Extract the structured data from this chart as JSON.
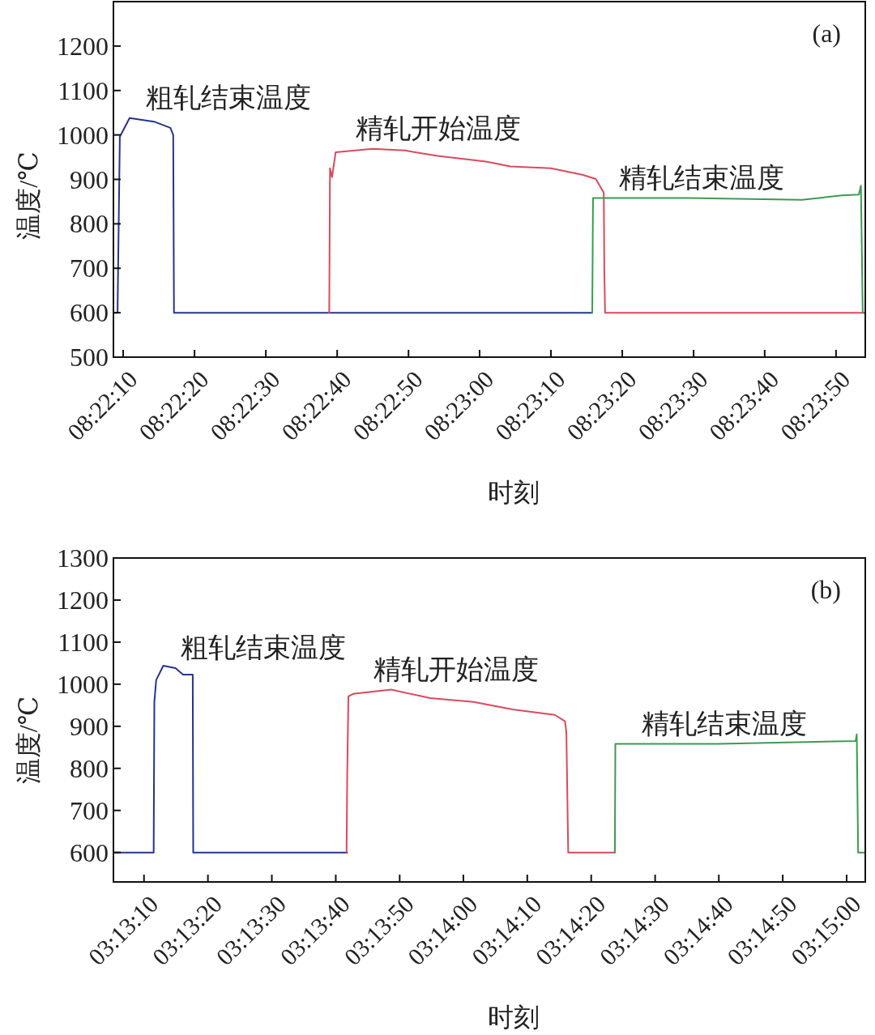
{
  "chart_data": [
    {
      "type": "line",
      "xlabel": "时刻",
      "ylabel": "温度/℃",
      "annotations": [
        "(a)"
      ],
      "xlim": [
        8.36906,
        8.39836
      ],
      "ylim": [
        500,
        1300
      ],
      "yticks": [
        500,
        600,
        700,
        800,
        900,
        1000,
        1100,
        1200
      ],
      "xticks": [
        {
          "value": 8.36944,
          "label": "08:22:10"
        },
        {
          "value": 8.37222,
          "label": "08:22:20"
        },
        {
          "value": 8.375,
          "label": "08:22:30"
        },
        {
          "value": 8.37778,
          "label": "08:22:40"
        },
        {
          "value": 8.38056,
          "label": "08:22:50"
        },
        {
          "value": 8.38333,
          "label": "08:23:00"
        },
        {
          "value": 8.38611,
          "label": "08:23:10"
        },
        {
          "value": 8.38889,
          "label": "08:23:20"
        },
        {
          "value": 8.39167,
          "label": "08:23:30"
        },
        {
          "value": 8.39444,
          "label": "08:23:40"
        },
        {
          "value": 8.39722,
          "label": "08:23:50"
        }
      ],
      "series": [
        {
          "name": "粗轧结束温度",
          "color": "#27348b",
          "x": [
            8.36906,
            8.36922,
            8.36931,
            8.36969,
            8.37064,
            8.37128,
            8.37139,
            8.37142,
            8.38772
          ],
          "values": [
            600,
            600,
            996,
            1038,
            1030,
            1016,
            1000,
            600,
            600
          ]
        },
        {
          "name": "精轧开始温度",
          "color": "#d94a5e",
          "x": [
            8.37747,
            8.3775,
            8.37758,
            8.37772,
            8.37917,
            8.38042,
            8.38169,
            8.38358,
            8.38453,
            8.38611,
            8.38736,
            8.38786,
            8.38817,
            8.38819,
            8.38822,
            8.39836
          ],
          "values": [
            600,
            925,
            905,
            961,
            969,
            965,
            953,
            940,
            929,
            925,
            910,
            901,
            870,
            697,
            600,
            600
          ]
        },
        {
          "name": "精轧结束温度",
          "color": "#3d9a52",
          "x": [
            8.38772,
            8.38775,
            8.39147,
            8.39589,
            8.39747,
            8.39811,
            8.39819,
            8.39826,
            8.39836
          ],
          "values": [
            600,
            858,
            858,
            854,
            864,
            866,
            886,
            600,
            600
          ]
        }
      ]
    },
    {
      "type": "line",
      "xlabel": "时刻",
      "ylabel": "温度/℃",
      "annotations": [
        "(b)"
      ],
      "xlim": [
        3.21811,
        3.25081
      ],
      "ylim": [
        530,
        1300
      ],
      "yticks": [
        600,
        700,
        800,
        900,
        1000,
        1100,
        1200,
        1300
      ],
      "xticks": [
        {
          "value": 3.21944,
          "label": "03:13:10"
        },
        {
          "value": 3.22222,
          "label": "03:13:20"
        },
        {
          "value": 3.225,
          "label": "03:13:30"
        },
        {
          "value": 3.22778,
          "label": "03:13:40"
        },
        {
          "value": 3.23056,
          "label": "03:13:50"
        },
        {
          "value": 3.23333,
          "label": "03:14:00"
        },
        {
          "value": 3.23611,
          "label": "03:14:10"
        },
        {
          "value": 3.23889,
          "label": "03:14:20"
        },
        {
          "value": 3.24167,
          "label": "03:14:30"
        },
        {
          "value": 3.24444,
          "label": "03:14:40"
        },
        {
          "value": 3.24722,
          "label": "03:14:50"
        },
        {
          "value": 3.25,
          "label": "03:15:00"
        }
      ],
      "series": [
        {
          "name": "粗轧结束温度",
          "color": "#27348b",
          "x": [
            3.21811,
            3.21986,
            3.21989,
            3.21997,
            3.22028,
            3.22081,
            3.22114,
            3.22156,
            3.22158,
            3.22828
          ],
          "values": [
            600,
            600,
            958,
            1010,
            1044,
            1038,
            1023,
            1023,
            600,
            600
          ]
        },
        {
          "name": "精轧开始温度",
          "color": "#d94a5e",
          "x": [
            3.22825,
            3.22828,
            3.22833,
            3.22853,
            3.23019,
            3.23189,
            3.23378,
            3.23547,
            3.23731,
            3.23775,
            3.23781,
            3.23789,
            3.23992
          ],
          "values": [
            600,
            792,
            971,
            977,
            987,
            967,
            958,
            940,
            927,
            912,
            885,
            600,
            600
          ]
        },
        {
          "name": "精轧结束温度",
          "color": "#3d9a52",
          "x": [
            3.23992,
            3.23994,
            3.24444,
            3.25039,
            3.25044,
            3.2505,
            3.25081
          ],
          "values": [
            600,
            858,
            858,
            865,
            881,
            600,
            600
          ]
        }
      ]
    }
  ]
}
